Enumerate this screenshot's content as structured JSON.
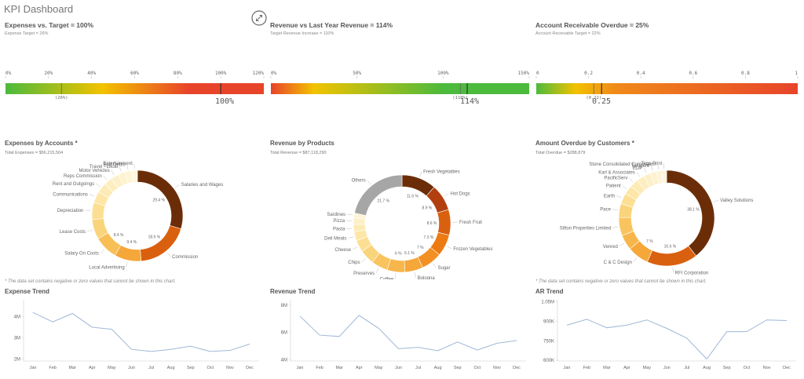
{
  "app": {
    "title": "KPI Dashboard"
  },
  "kpis": [
    {
      "title": "Expenses vs. Target = 100%",
      "subtitle": "Expense Target = 26%",
      "value_text": "100%",
      "ticks": [
        "0%",
        "20%",
        "40%",
        "60%",
        "80%",
        "100%",
        "120%"
      ],
      "target_label": "(26%)"
    },
    {
      "title": "Revenue vs Last Year Revenue = 114%",
      "subtitle": "Target Revenue Increase = 110%",
      "value_text": "114%",
      "ticks": [
        "0%",
        "50%",
        "100%",
        "150%"
      ],
      "target_label": "(110%)"
    },
    {
      "title": "Account Receivable Overdue = 25%",
      "subtitle": "Account Receivable Target = 22%",
      "value_text": "0.25",
      "ticks": [
        "0",
        "0.2",
        "0.4",
        "0.6",
        "0.8",
        "1"
      ],
      "target_label": "(0.22)"
    }
  ],
  "donuts": [
    {
      "title": "Expenses by Accounts *",
      "subtitle": "Total Expenses = $56,215,504",
      "footnote": "* The data set contains negative or zero values that cannot be shown in this chart."
    },
    {
      "title": "Revenue by Products",
      "subtitle": "Total Revenue = $87,118,290"
    },
    {
      "title": "Amount Overdue by Customers *",
      "subtitle": "Total Overdue = $288,879",
      "footnote": "* The data set contains negative or zero values that cannot be shown in this chart."
    }
  ],
  "trends": [
    {
      "title": "Expense Trend"
    },
    {
      "title": "Revenue Trend"
    },
    {
      "title": "AR Trend"
    }
  ],
  "chart_data": [
    {
      "type": "bar",
      "subtype": "gauge",
      "xlim": [
        0,
        1.2
      ],
      "value": 1.0,
      "target": 0.26,
      "tick_values": [
        0,
        0.2,
        0.4,
        0.6,
        0.8,
        1.0,
        1.2
      ],
      "color_bands": [
        [
          0,
          "#4cba3c"
        ],
        [
          0.45,
          "#f2c200"
        ],
        [
          0.85,
          "#e8442a"
        ]
      ],
      "marker_color": "#777777"
    },
    {
      "type": "bar",
      "subtype": "gauge",
      "xlim": [
        0,
        1.5
      ],
      "value": 1.14,
      "target": 1.1,
      "tick_values": [
        0,
        0.5,
        1.0,
        1.5
      ],
      "color_bands": [
        [
          0,
          "#e8442a"
        ],
        [
          0.25,
          "#f2c200"
        ],
        [
          1.0,
          "#4cba3c"
        ]
      ],
      "marker_color": "#555555"
    },
    {
      "type": "bar",
      "subtype": "gauge",
      "xlim": [
        0,
        1
      ],
      "value": 0.25,
      "target": 0.22,
      "tick_values": [
        0,
        0.2,
        0.4,
        0.6,
        0.8,
        1.0
      ],
      "color_bands": [
        [
          0,
          "#4cba3c"
        ],
        [
          0.15,
          "#f2c200"
        ],
        [
          0.3,
          "#f08a1a"
        ],
        [
          1.0,
          "#e8442a"
        ]
      ],
      "marker_color": "#555555"
    },
    {
      "type": "pie",
      "subtype": "donut",
      "slices": [
        {
          "label": "Salaries and Wages",
          "value": 29.4,
          "color": "#6b2d08",
          "data_label": "29.4 %"
        },
        {
          "label": "Commission",
          "value": 18.9,
          "color": "#d9600f",
          "data_label": "18.9 %"
        },
        {
          "label": "Local Advertising",
          "value": 9.4,
          "color": "#f5a73a",
          "data_label": "9.4 %"
        },
        {
          "label": "Salary On Costs",
          "value": 8.4,
          "color": "#f8bf57",
          "data_label": "8.4 %"
        },
        {
          "label": "Lease Costs",
          "value": 7,
          "color": "#fad47a"
        },
        {
          "label": "Depreciation",
          "value": 6,
          "color": "#fcdf92"
        },
        {
          "label": "Communications",
          "value": 4,
          "color": "#fde6a6"
        },
        {
          "label": "Rent and Outgoings",
          "value": 3.5,
          "color": "#fdebb6"
        },
        {
          "label": "Reps Commission",
          "value": 3,
          "color": "#fdeec0"
        },
        {
          "label": "Motor Vehicles",
          "value": 2.8,
          "color": "#fdf0c8"
        },
        {
          "label": "Travel - Local",
          "value": 2.5,
          "color": "#fef2cf"
        },
        {
          "label": "Bad Debts",
          "value": 2.3,
          "color": "#fef4d6"
        },
        {
          "label": "Entertainment",
          "value": 2.0,
          "color": "#fef6dc"
        }
      ]
    },
    {
      "type": "pie",
      "subtype": "donut",
      "slices": [
        {
          "label": "Fresh Vegetables",
          "value": 11.6,
          "color": "#6b2d08",
          "data_label": "11.6 %"
        },
        {
          "label": "Hot Dogs",
          "value": 8.9,
          "color": "#b2400e",
          "data_label": "8.9 %"
        },
        {
          "label": "Fresh Fruit",
          "value": 8.6,
          "color": "#d9600f",
          "data_label": "8.6 %"
        },
        {
          "label": "Frozen Vegetables",
          "value": 7.3,
          "color": "#ec7a12",
          "data_label": "7.3 %"
        },
        {
          "label": "Sugar",
          "value": 7,
          "color": "#f39024",
          "data_label": "7 %"
        },
        {
          "label": "Bologna",
          "value": 6.1,
          "color": "#f5a73a",
          "data_label": "6.1 %"
        },
        {
          "label": "Coffee",
          "value": 6,
          "color": "#f7b64b",
          "data_label": "6 %"
        },
        {
          "label": "Preserves",
          "value": 5.5,
          "color": "#f9c45f"
        },
        {
          "label": "Chips",
          "value": 5,
          "color": "#fad47a"
        },
        {
          "label": "Cheese",
          "value": 4,
          "color": "#fcdf92"
        },
        {
          "label": "Deli Meats",
          "value": 3,
          "color": "#fde6a6"
        },
        {
          "label": "Pasta",
          "value": 2.5,
          "color": "#fdebb6"
        },
        {
          "label": "Pizza",
          "value": 2.2,
          "color": "#fdf0c8"
        },
        {
          "label": "Sardines",
          "value": 1.6,
          "color": "#fef4d6"
        },
        {
          "label": "Others",
          "value": 21.7,
          "color": "#a6a6a6",
          "data_label": "21.7 %"
        }
      ]
    },
    {
      "type": "pie",
      "subtype": "donut",
      "slices": [
        {
          "label": "Valley Solutions",
          "value": 38.1,
          "color": "#6b2d08",
          "data_label": "38.1 %"
        },
        {
          "label": "RFI Corporation",
          "value": 16.6,
          "color": "#d9600f",
          "data_label": "16.6 %"
        },
        {
          "label": "C & C Design",
          "value": 7,
          "color": "#f5a73a",
          "data_label": "7 %"
        },
        {
          "label": "Venred",
          "value": 5,
          "color": "#f7b64b"
        },
        {
          "label": "Sifton Properties Limited",
          "value": 6,
          "color": "#f9c45f"
        },
        {
          "label": "Pace",
          "value": 4.5,
          "color": "#fad47a"
        },
        {
          "label": "Earth",
          "value": 3.5,
          "color": "#fcdf92"
        },
        {
          "label": "Patient",
          "value": 3,
          "color": "#fde6a6"
        },
        {
          "label": "PacificServ",
          "value": 2.8,
          "color": "#fdebb6"
        },
        {
          "label": "Karl & Associates",
          "value": 2.5,
          "color": "#fdeec0"
        },
        {
          "label": "EDP",
          "value": 2.2,
          "color": "#fdf0c8"
        },
        {
          "label": "Tampere",
          "value": 2.0,
          "color": "#fef2cf"
        },
        {
          "label": "Stone Consolidated Corporation",
          "value": 1.8,
          "color": "#fef4d6"
        },
        {
          "label": "Teca-Print",
          "value": 1.6,
          "color": "#fef6dc"
        }
      ]
    },
    {
      "type": "line",
      "categories": [
        "Jan",
        "Feb",
        "Mar",
        "Apr",
        "May",
        "Jun",
        "Jul",
        "Aug",
        "Sep",
        "Oct",
        "Nov",
        "Dec"
      ],
      "series": [
        {
          "values": [
            4.2,
            3.75,
            4.15,
            3.5,
            3.4,
            2.45,
            2.35,
            2.45,
            2.6,
            2.35,
            2.4,
            2.7
          ]
        }
      ],
      "ylim": [
        1.9,
        4.8
      ],
      "yticks": [
        2,
        3,
        4
      ],
      "ytick_labels": [
        "2M",
        "3M",
        "4M"
      ],
      "color": "#9fb7d6"
    },
    {
      "type": "line",
      "categories": [
        "Jan",
        "Feb",
        "Mar",
        "Apr",
        "May",
        "Jun",
        "Jul",
        "Aug",
        "Sep",
        "Oct",
        "Nov",
        "Dec"
      ],
      "series": [
        {
          "values": [
            7.2,
            5.8,
            5.7,
            7.25,
            6.3,
            4.8,
            4.9,
            4.65,
            5.3,
            4.7,
            5.2,
            5.4
          ]
        }
      ],
      "ylim": [
        3.9,
        8.4
      ],
      "yticks": [
        4,
        6,
        8
      ],
      "ytick_labels": [
        "4M",
        "6M",
        "8M"
      ],
      "color": "#9fb7d6"
    },
    {
      "type": "line",
      "categories": [
        "Jan",
        "Feb",
        "Mar",
        "Apr",
        "May",
        "Jun",
        "Jul",
        "Aug",
        "Sep",
        "Oct",
        "Nov",
        "Dec"
      ],
      "series": [
        {
          "values": [
            870,
            915,
            850,
            870,
            910,
            845,
            770,
            610,
            820,
            820,
            910,
            905
          ]
        }
      ],
      "ylim": [
        595,
        1065
      ],
      "yticks": [
        600,
        750,
        900,
        1050
      ],
      "ytick_labels": [
        "600K",
        "750K",
        "900K",
        "1.05M"
      ],
      "color": "#9fb7d6"
    }
  ]
}
